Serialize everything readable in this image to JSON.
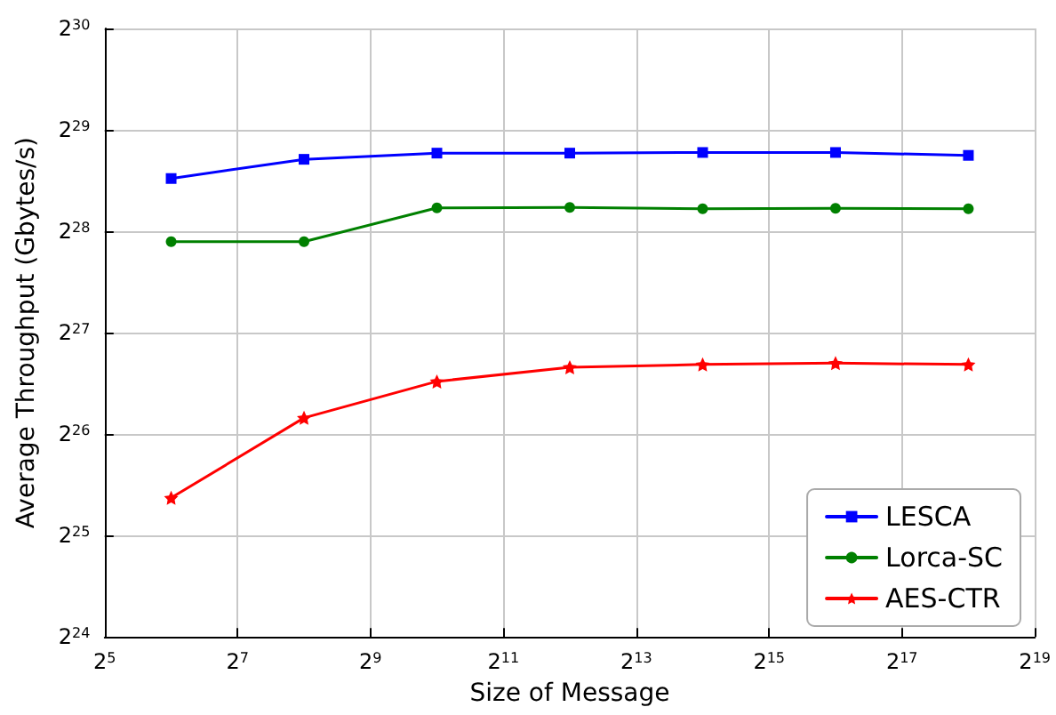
{
  "chart_data": {
    "type": "line",
    "xlabel": "Size of Message",
    "ylabel": "Average Throughput (Gbytes/s)",
    "log": "xy",
    "grid": true,
    "legend": "bottom right",
    "line_style": "solid",
    "x": [
      64,
      256,
      1024,
      4096,
      16384,
      65536,
      262144
    ],
    "xlim": [
      32,
      524288
    ],
    "xticks": [
      {
        "value": 32,
        "label": "2$^{5}$"
      },
      {
        "value": 128,
        "label": "2$^{7}$"
      },
      {
        "value": 512,
        "label": "2$^{9}$"
      },
      {
        "value": 2048,
        "label": "2$^{11}$"
      },
      {
        "value": 8192,
        "label": "2$^{13}$"
      },
      {
        "value": 32768,
        "label": "2$^{15}$"
      },
      {
        "value": 131072,
        "label": "2$^{17}$"
      },
      {
        "value": 524288,
        "label": "2$^{19}$"
      }
    ],
    "ylim": [
      16777216,
      1073741824
    ],
    "yticks": [
      {
        "value": 16777216,
        "label": "2$^{24}$"
      },
      {
        "value": 33554432,
        "label": "2$^{25}$"
      },
      {
        "value": 67108864,
        "label": "2$^{26}$"
      },
      {
        "value": 134217728,
        "label": "2$^{27}$"
      },
      {
        "value": 268435456,
        "label": "2$^{28}$"
      },
      {
        "value": 536870912,
        "label": "2$^{29}$"
      },
      {
        "value": 1073741824,
        "label": "2$^{30}$"
      }
    ],
    "series": [
      {
        "name": "LESCA",
        "color": "#0000ff",
        "marker": "square",
        "values": [
          385000000,
          439000000,
          458000000,
          458000000,
          460000000,
          460000000,
          451000000
        ]
      },
      {
        "name": "Lorca-SC",
        "color": "#008000",
        "marker": "circle",
        "values": [
          250000000,
          250000000,
          315000000,
          316000000,
          313000000,
          314000000,
          313000000
        ]
      },
      {
        "name": "AES-CTR",
        "color": "#ff0000",
        "marker": "star",
        "values": [
          43400000,
          75000000,
          96200000,
          106000000,
          108000000,
          109000000,
          108000000
        ]
      }
    ]
  }
}
